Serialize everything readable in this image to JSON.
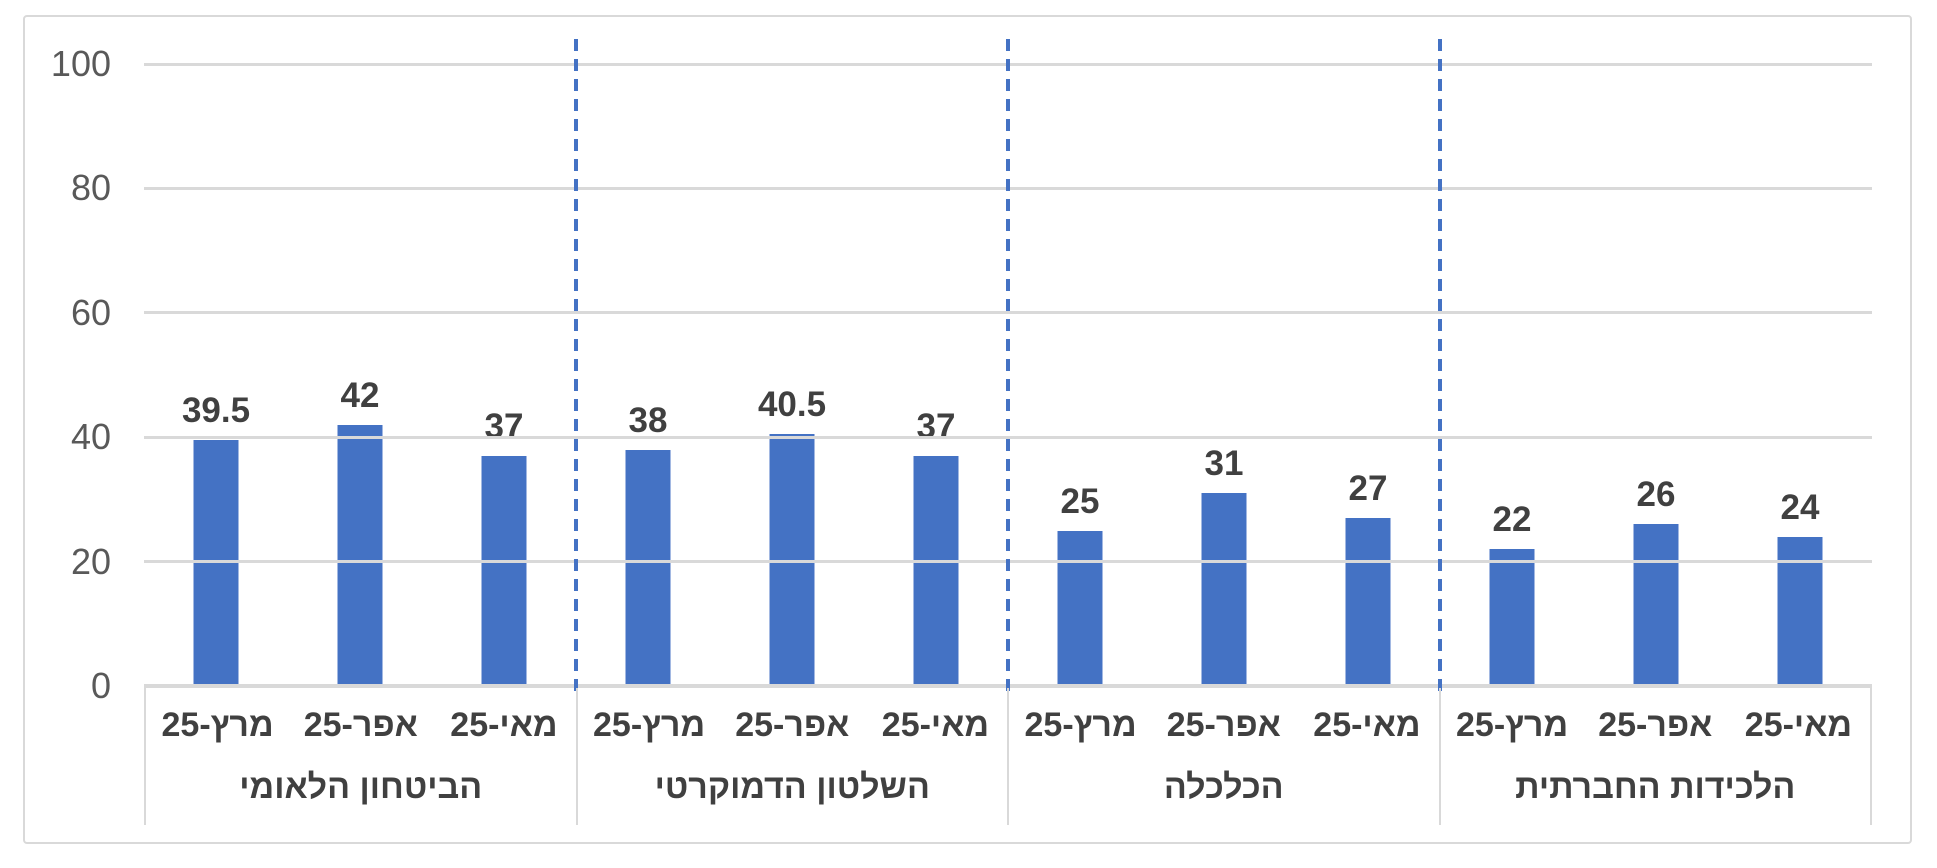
{
  "chart_data": {
    "type": "bar",
    "title": "",
    "xlabel": "",
    "ylabel": "",
    "ylim": [
      0,
      100
    ],
    "grid": true,
    "legend": false,
    "bar_color": "#4472C4",
    "separator_color": "#4472C4",
    "gridline_color": "#D9D9D9",
    "value_label_color": "#404040",
    "axis_tick_color": "#595959",
    "y_ticks": [
      0,
      20,
      40,
      60,
      80,
      100
    ],
    "months": [
      "מרץ-25",
      "אפר-25",
      "מאי-25"
    ],
    "groups": [
      {
        "name": "הביטחון הלאומי",
        "values": [
          39.5,
          42,
          37
        ]
      },
      {
        "name": "השלטון הדמוקרטי",
        "values": [
          38,
          40.5,
          37
        ]
      },
      {
        "name": "הכלכלה",
        "values": [
          25,
          31,
          27
        ]
      },
      {
        "name": "הלכידות החברתית",
        "values": [
          22,
          26,
          24
        ]
      }
    ]
  }
}
